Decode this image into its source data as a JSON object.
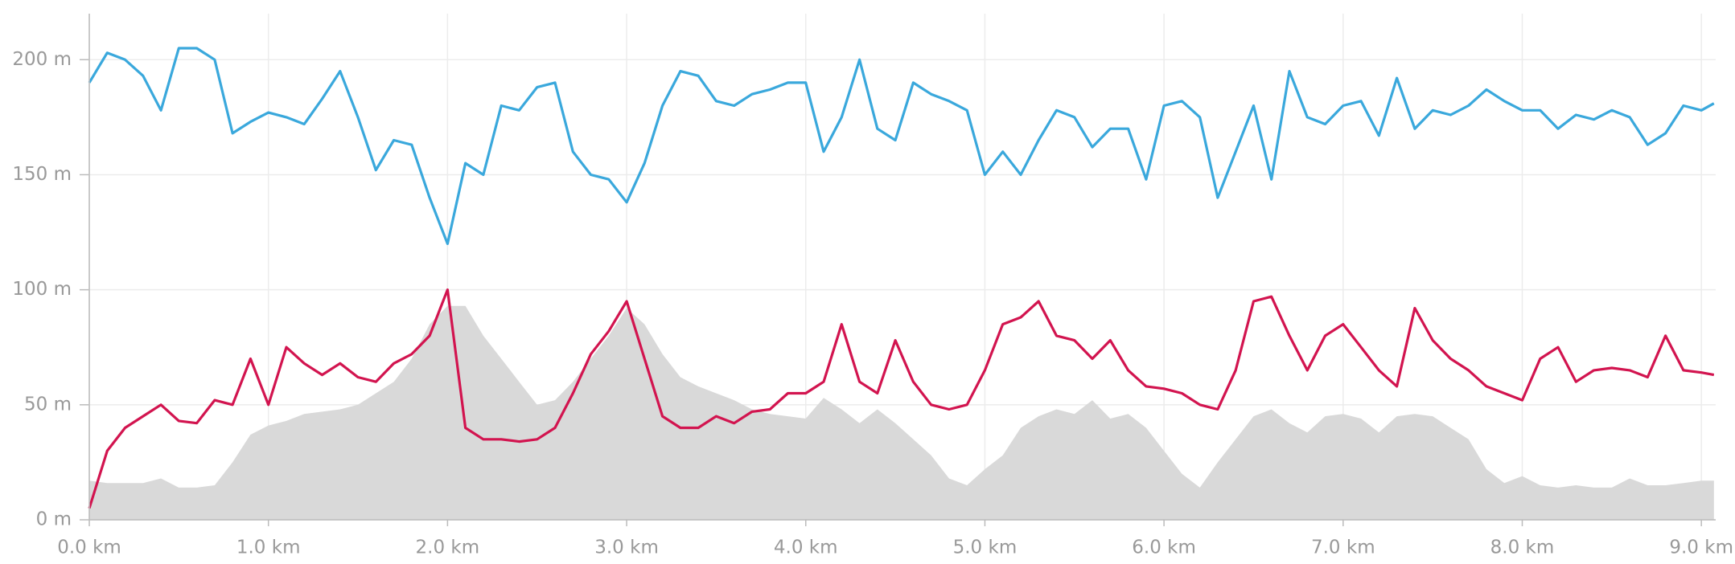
{
  "chart_data": {
    "type": "line",
    "x": [
      0.0,
      0.1,
      0.2,
      0.3,
      0.4,
      0.5,
      0.6,
      0.7,
      0.8,
      0.9,
      1.0,
      1.1,
      1.2,
      1.3,
      1.4,
      1.5,
      1.6,
      1.7,
      1.8,
      1.9,
      2.0,
      2.1,
      2.2,
      2.3,
      2.4,
      2.5,
      2.6,
      2.7,
      2.8,
      2.9,
      3.0,
      3.1,
      3.2,
      3.3,
      3.4,
      3.5,
      3.6,
      3.7,
      3.8,
      3.9,
      4.0,
      4.1,
      4.2,
      4.3,
      4.4,
      4.5,
      4.6,
      4.7,
      4.8,
      4.9,
      5.0,
      5.1,
      5.2,
      5.3,
      5.4,
      5.5,
      5.6,
      5.7,
      5.8,
      5.9,
      6.0,
      6.1,
      6.2,
      6.3,
      6.4,
      6.5,
      6.6,
      6.7,
      6.8,
      6.9,
      7.0,
      7.1,
      7.2,
      7.3,
      7.4,
      7.5,
      7.6,
      7.7,
      7.8,
      7.9,
      8.0,
      8.1,
      8.2,
      8.3,
      8.4,
      8.5,
      8.6,
      8.7,
      8.8,
      8.9,
      9.0,
      9.07
    ],
    "series": [
      {
        "style": "area",
        "color": "#d9d9d9",
        "values": [
          17,
          16,
          16,
          16,
          18,
          14,
          14,
          15,
          25,
          37,
          41,
          43,
          46,
          47,
          48,
          50,
          55,
          60,
          70,
          85,
          93,
          93,
          80,
          70,
          60,
          50,
          52,
          60,
          70,
          80,
          92,
          85,
          72,
          62,
          58,
          55,
          52,
          48,
          46,
          45,
          44,
          53,
          48,
          42,
          48,
          42,
          35,
          28,
          18,
          15,
          22,
          28,
          40,
          45,
          48,
          46,
          52,
          44,
          46,
          40,
          30,
          20,
          14,
          25,
          35,
          45,
          48,
          42,
          38,
          45,
          46,
          44,
          38,
          45,
          46,
          45,
          40,
          35,
          22,
          16,
          19,
          15,
          14,
          15,
          14,
          14,
          18,
          15,
          15,
          16,
          17,
          17
        ]
      },
      {
        "style": "line",
        "color": "#3aa8dc",
        "values": [
          190,
          203,
          200,
          193,
          178,
          205,
          205,
          200,
          168,
          173,
          177,
          175,
          172,
          183,
          195,
          175,
          152,
          165,
          163,
          140,
          120,
          155,
          150,
          180,
          178,
          188,
          190,
          160,
          150,
          148,
          138,
          155,
          180,
          195,
          193,
          182,
          180,
          185,
          187,
          190,
          190,
          160,
          175,
          200,
          170,
          165,
          190,
          185,
          182,
          178,
          150,
          160,
          150,
          165,
          178,
          175,
          162,
          170,
          170,
          148,
          180,
          182,
          175,
          140,
          160,
          180,
          148,
          195,
          175,
          172,
          180,
          182,
          167,
          192,
          170,
          178,
          176,
          180,
          187,
          182,
          178,
          178,
          170,
          176,
          174,
          178,
          175,
          163,
          168,
          180,
          178,
          181
        ]
      },
      {
        "style": "line",
        "color": "#d2144f",
        "values": [
          5,
          30,
          40,
          45,
          50,
          43,
          42,
          52,
          50,
          70,
          50,
          75,
          68,
          63,
          68,
          62,
          60,
          68,
          72,
          80,
          100,
          40,
          35,
          35,
          34,
          35,
          40,
          55,
          72,
          82,
          95,
          70,
          45,
          40,
          40,
          45,
          42,
          47,
          48,
          55,
          55,
          60,
          85,
          60,
          55,
          78,
          60,
          50,
          48,
          50,
          65,
          85,
          88,
          95,
          80,
          78,
          70,
          78,
          65,
          58,
          57,
          55,
          50,
          48,
          65,
          95,
          97,
          80,
          65,
          80,
          85,
          75,
          65,
          58,
          92,
          78,
          70,
          65,
          58,
          55,
          52,
          70,
          75,
          60,
          65,
          66,
          65,
          62,
          80,
          65,
          64,
          63
        ]
      }
    ],
    "xlim": [
      0,
      9.08
    ],
    "ylim": [
      0,
      220
    ],
    "xticks": [
      {
        "value": 0,
        "label": "0.0 km"
      },
      {
        "value": 1,
        "label": "1.0 km"
      },
      {
        "value": 2,
        "label": "2.0 km"
      },
      {
        "value": 3,
        "label": "3.0 km"
      },
      {
        "value": 4,
        "label": "4.0 km"
      },
      {
        "value": 5,
        "label": "5.0 km"
      },
      {
        "value": 6,
        "label": "6.0 km"
      },
      {
        "value": 7,
        "label": "7.0 km"
      },
      {
        "value": 8,
        "label": "8.0 km"
      },
      {
        "value": 9,
        "label": "9.0 km"
      }
    ],
    "yticks": [
      {
        "value": 0,
        "label": "0 m"
      },
      {
        "value": 50,
        "label": "50 m"
      },
      {
        "value": 100,
        "label": "100 m"
      },
      {
        "value": 150,
        "label": "150 m"
      },
      {
        "value": 200,
        "label": "200 m"
      }
    ],
    "grid": true
  }
}
